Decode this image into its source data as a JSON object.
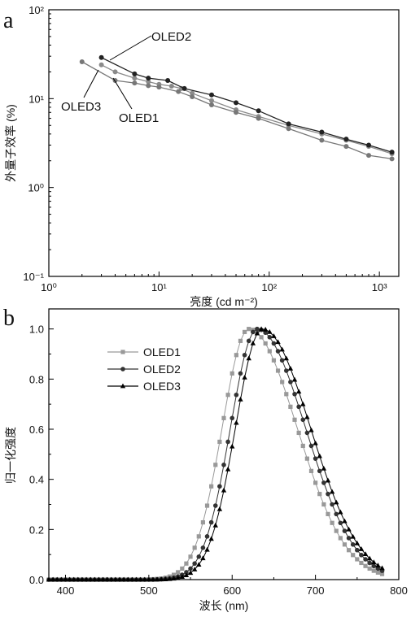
{
  "chart_data": [
    {
      "panel_label": "a",
      "type": "line",
      "xscale": "log",
      "yscale": "log",
      "xlim": [
        1,
        1500
      ],
      "ylim": [
        0.1,
        100
      ],
      "xlabel": "亮度 (cd m⁻²)",
      "ylabel": "外量子效率 (%)",
      "xticks": [
        "10⁰",
        "10¹",
        "10²",
        "10³"
      ],
      "yticks": [
        "10⁻¹",
        "10⁰",
        "10¹",
        "10²"
      ],
      "grid": false,
      "series": [
        {
          "name": "OLED1",
          "color": "#8a8a8a",
          "x": [
            3,
            4,
            6,
            8,
            10,
            13,
            16,
            20,
            30,
            50,
            80,
            150,
            300,
            500,
            800,
            1300
          ],
          "y": [
            24,
            20,
            17,
            15.5,
            14.5,
            13.8,
            13,
            11.5,
            9.5,
            7.5,
            6.3,
            5,
            4,
            3.4,
            2.9,
            2.4
          ]
        },
        {
          "name": "OLED2",
          "color": "#222222",
          "x": [
            3,
            6,
            8,
            12,
            17,
            30,
            50,
            80,
            150,
            300,
            500,
            800,
            1300
          ],
          "y": [
            29,
            19,
            17,
            16,
            13,
            11,
            9,
            7.3,
            5.2,
            4.2,
            3.5,
            3,
            2.5
          ]
        },
        {
          "name": "OLED3",
          "color": "#777777",
          "x": [
            2,
            4,
            6,
            8,
            10,
            15,
            20,
            30,
            50,
            80,
            150,
            300,
            500,
            800,
            1300
          ],
          "y": [
            26,
            16,
            15,
            14,
            13.5,
            12,
            10.5,
            8.5,
            7,
            6,
            4.6,
            3.4,
            2.9,
            2.3,
            2.1
          ]
        }
      ],
      "annotations": [
        "OLED2",
        "OLED3",
        "OLED1"
      ]
    },
    {
      "panel_label": "b",
      "type": "line",
      "xlim": [
        380,
        800
      ],
      "ylim": [
        0,
        1.08
      ],
      "xlabel": "波长 (nm)",
      "ylabel": "归一化强度",
      "xticks": [
        400,
        500,
        600,
        700,
        800
      ],
      "yticks": [
        "0.0",
        "0.2",
        "0.4",
        "0.6",
        "0.8",
        "1.0"
      ],
      "grid": false,
      "legend_position": "top-left",
      "series": [
        {
          "name": "OLED1",
          "marker": "square",
          "color": "#999999",
          "peak": 620
        },
        {
          "name": "OLED2",
          "marker": "circle",
          "color": "#333333",
          "peak": 630
        },
        {
          "name": "OLED3",
          "marker": "triangle",
          "color": "#000000",
          "peak": 636
        }
      ]
    }
  ]
}
